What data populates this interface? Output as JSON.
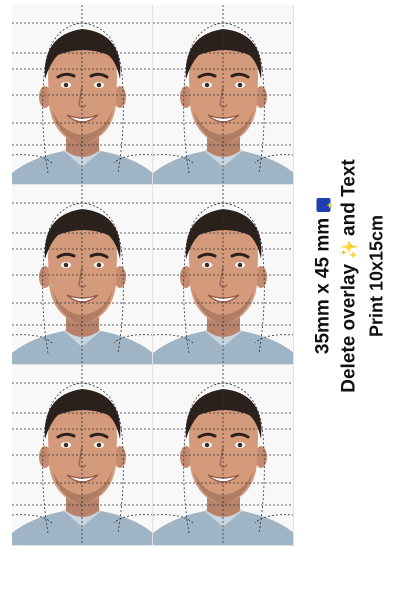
{
  "photo_sheet": {
    "photo_count": 6
  },
  "instructions": {
    "size_label": "35mm x 45 mm",
    "size_icon": "eu-flag-icon",
    "overlay_label_pre": "Delete overlay",
    "sparkle_icon": "sparkle-icon",
    "sparkle_glyph": "✨",
    "overlay_label_post": "and Text",
    "print_label": "Print 10x15cm"
  },
  "colors": {
    "background": "#ffffff",
    "guide_lines": "#333333",
    "text": "#111111"
  }
}
